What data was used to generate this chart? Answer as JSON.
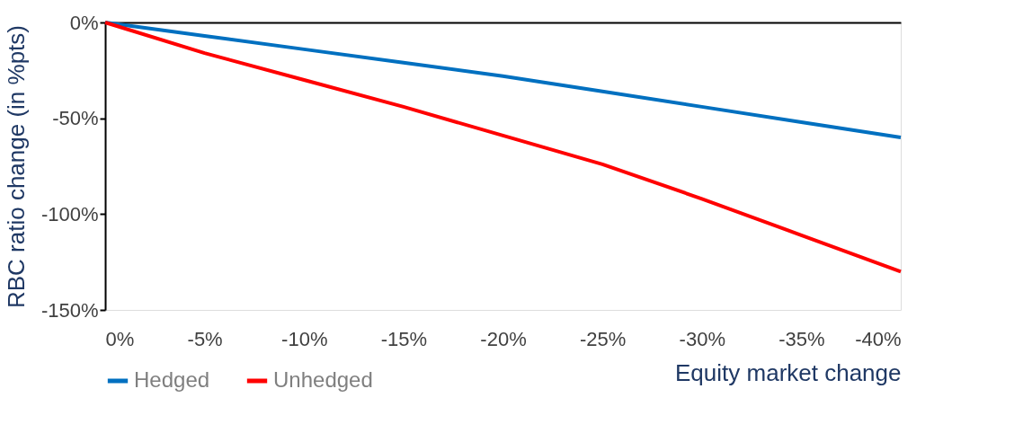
{
  "chart_data": {
    "type": "line",
    "xlabel": "Equity market change",
    "ylabel": "RBC ratio change (in %pts)",
    "x": [
      0,
      -5,
      -10,
      -15,
      -20,
      -25,
      -30,
      -35,
      -40
    ],
    "series": [
      {
        "name": "Hedged",
        "color": "#0070c0",
        "values": [
          0,
          -7,
          -14,
          -21,
          -28,
          -36,
          -44,
          -52,
          -60
        ]
      },
      {
        "name": "Unhedged",
        "color": "#ff0000",
        "values": [
          0,
          -16,
          -30,
          -44,
          -59,
          -74,
          -92,
          -111,
          -130
        ]
      }
    ],
    "xlim": [
      0,
      -40
    ],
    "xticks": [
      {
        "value": 0,
        "label": "0%"
      },
      {
        "value": -5,
        "label": "-5%"
      },
      {
        "value": -10,
        "label": "-10%"
      },
      {
        "value": -15,
        "label": "-15%"
      },
      {
        "value": -20,
        "label": "-20%"
      },
      {
        "value": -25,
        "label": "-25%"
      },
      {
        "value": -30,
        "label": "-30%"
      },
      {
        "value": -35,
        "label": "-35%"
      },
      {
        "value": -40,
        "label": "-40%"
      }
    ],
    "ylim": [
      -150,
      0
    ],
    "yticks": [
      {
        "value": 0,
        "label": "0%"
      },
      {
        "value": -50,
        "label": "-50%"
      },
      {
        "value": -100,
        "label": "-100%"
      },
      {
        "value": -150,
        "label": "-150%"
      }
    ],
    "grid": false,
    "legend": "bottom left",
    "marker": "none",
    "line_style": "solid"
  }
}
